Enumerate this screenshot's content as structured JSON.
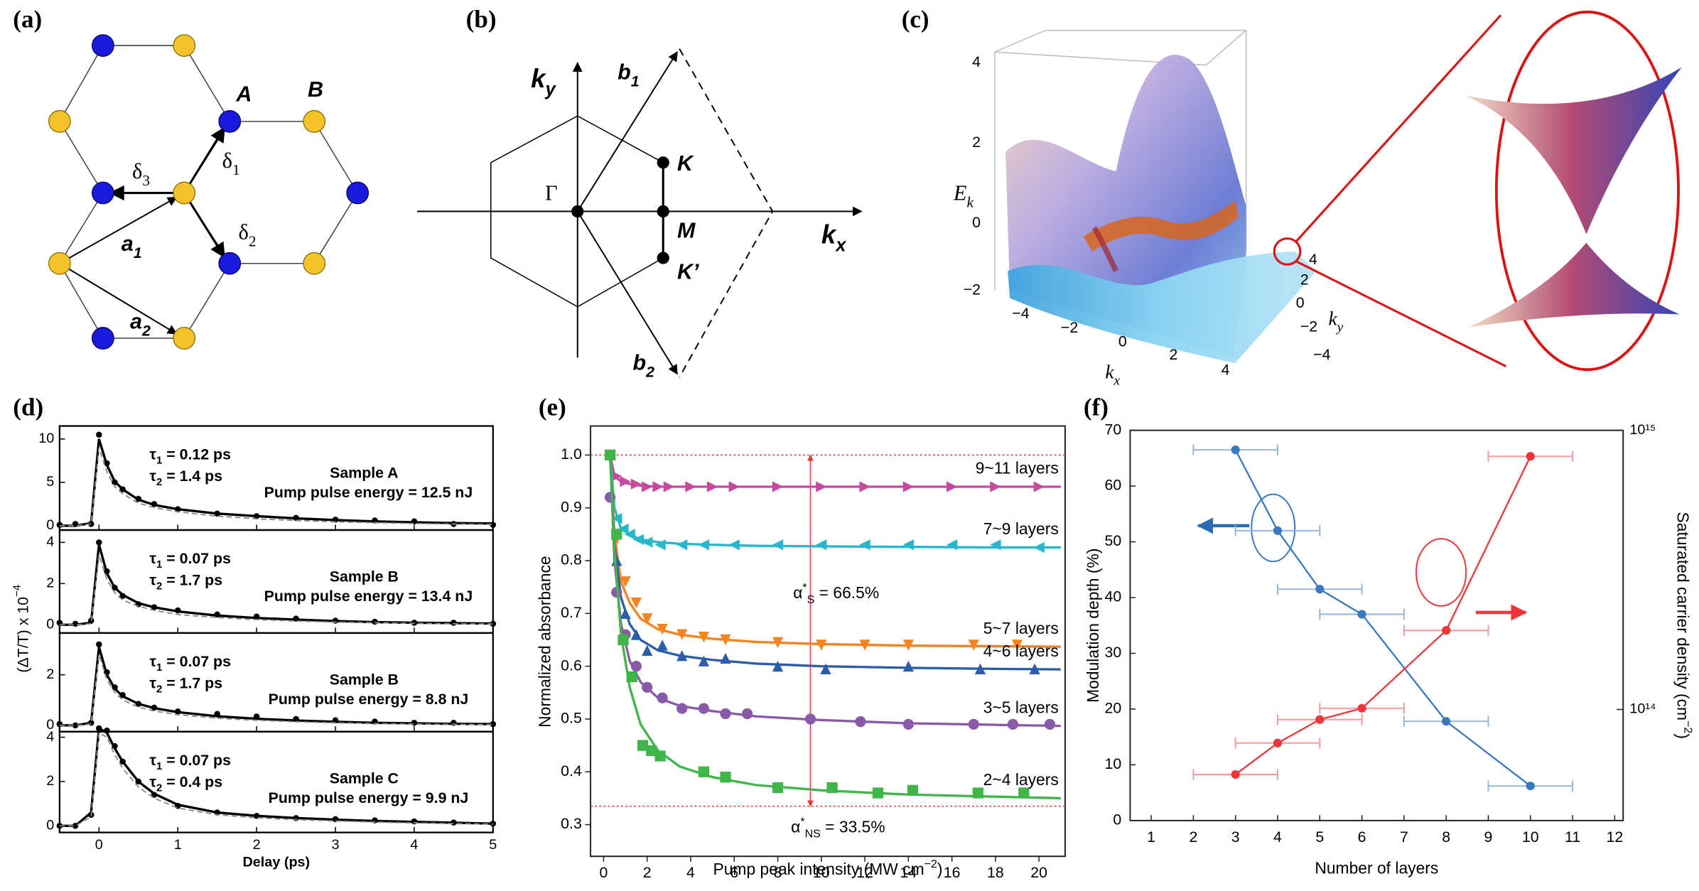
{
  "panel_labels": [
    "(a)",
    "(b)",
    "(c)",
    "(d)",
    "(e)",
    "(f)"
  ],
  "diagram_a": {
    "site_a": "A",
    "site_b": "B",
    "vectors": [
      {
        "symbol": "δ",
        "sub": "1"
      },
      {
        "symbol": "δ",
        "sub": "2"
      },
      {
        "symbol": "δ",
        "sub": "3"
      },
      {
        "symbol": "a",
        "sub": "1"
      },
      {
        "symbol": "a",
        "sub": "2"
      }
    ]
  },
  "diagram_b": {
    "axes": [
      {
        "symbol": "k",
        "sub": "x"
      },
      {
        "symbol": "k",
        "sub": "y"
      }
    ],
    "vectors": [
      {
        "symbol": "b",
        "sub": "1"
      },
      {
        "symbol": "b",
        "sub": "2"
      }
    ],
    "points": [
      "Γ",
      "K",
      "M",
      "K’"
    ]
  },
  "diagram_c": {
    "z_label": {
      "symbol": "E",
      "sub": "k"
    },
    "z_ticks": [
      "4",
      "2",
      "0",
      "−2"
    ],
    "x_label": {
      "symbol": "k",
      "sub": "x"
    },
    "x_ticks": [
      "−4",
      "−2",
      "0",
      "2",
      "4"
    ],
    "y_label": {
      "symbol": "k",
      "sub": "y"
    },
    "y_ticks": [
      "4",
      "2",
      "0",
      "−2",
      "−4"
    ]
  },
  "chart_data": [
    {
      "type": "line",
      "xlabel": "Delay (ps)",
      "ylabel": {
        "lead": "(ΔT/T) x 10",
        "sup": "−4"
      },
      "xlim": [
        -0.5,
        5
      ],
      "xticks": [
        0,
        1,
        2,
        3,
        4,
        5
      ],
      "x": [
        -0.5,
        -0.3,
        -0.1,
        0,
        0.1,
        0.2,
        0.3,
        0.5,
        0.7,
        1,
        1.5,
        2,
        2.5,
        3,
        3.5,
        4,
        4.5,
        5
      ],
      "subplots": [
        {
          "ylim": [
            -0.5,
            11.5
          ],
          "yticks": [
            0,
            5,
            10
          ],
          "tau": [
            {
              "symbol": "τ",
              "sub": "1",
              "tail": " = 0.12 ps"
            },
            {
              "symbol": "τ",
              "sub": "2",
              "tail": " = 1.4 ps"
            }
          ],
          "sample": "Sample A",
          "energy": "Pump pulse energy = 12.5 nJ",
          "series": [
            {
              "style": "markers",
              "color": "#000000",
              "values": [
                0.1,
                0.2,
                0.2,
                10.5,
                7.2,
                5.0,
                4.2,
                3.1,
                2.5,
                1.9,
                1.4,
                1.1,
                0.9,
                0.7,
                0.6,
                0.5,
                0.2,
                0.1
              ]
            },
            {
              "style": "solid",
              "color": "#000000",
              "values": [
                0,
                0,
                0.3,
                10,
                7.0,
                5.1,
                4.2,
                3.0,
                2.4,
                1.9,
                1.4,
                1.1,
                0.85,
                0.65,
                0.5,
                0.4,
                0.3,
                0.25
              ]
            },
            {
              "style": "dashed",
              "color": "#888888",
              "values": [
                0,
                0,
                0.2,
                9.0,
                6.2,
                4.5,
                3.7,
                2.6,
                2.1,
                1.6,
                1.1,
                0.8,
                0.6,
                0.45,
                0.35,
                0.25,
                0.2,
                0.15
              ]
            }
          ]
        },
        {
          "ylim": [
            -0.4,
            4.6
          ],
          "yticks": [
            0,
            2,
            4
          ],
          "tau": [
            {
              "symbol": "τ",
              "sub": "1",
              "tail": " = 0.07 ps"
            },
            {
              "symbol": "τ",
              "sub": "2",
              "tail": " = 1.7 ps"
            }
          ],
          "sample": "Sample B",
          "energy": "Pump pulse energy = 13.4 nJ",
          "series": [
            {
              "style": "markers",
              "color": "#000000",
              "values": [
                0.1,
                0.05,
                0.2,
                4.0,
                2.6,
                1.8,
                1.4,
                1.0,
                0.85,
                0.7,
                0.5,
                0.4,
                0.3,
                0.2,
                0.15,
                0.1,
                0.1,
                0.05
              ]
            },
            {
              "style": "solid",
              "color": "#000000",
              "values": [
                0,
                0,
                0.1,
                3.9,
                2.5,
                1.8,
                1.45,
                1.05,
                0.85,
                0.65,
                0.45,
                0.33,
                0.25,
                0.18,
                0.13,
                0.1,
                0.08,
                0.06
              ]
            },
            {
              "style": "dashed",
              "color": "#888888",
              "values": [
                0,
                0,
                0.05,
                3.4,
                2.2,
                1.55,
                1.2,
                0.9,
                0.7,
                0.5,
                0.35,
                0.25,
                0.18,
                0.13,
                0.1,
                0.07,
                0.05,
                0.04
              ]
            }
          ]
        },
        {
          "ylim": [
            -0.25,
            3.65
          ],
          "yticks": [
            0,
            2
          ],
          "tau": [
            {
              "symbol": "τ",
              "sub": "1",
              "tail": " = 0.07 ps"
            },
            {
              "symbol": "τ",
              "sub": "2",
              "tail": " = 1.7 ps"
            }
          ],
          "sample": "Sample B",
          "energy": "Pump pulse energy = 8.8 nJ",
          "series": [
            {
              "style": "markers",
              "color": "#000000",
              "values": [
                0.05,
                0,
                0.1,
                3.2,
                2.1,
                1.5,
                1.2,
                0.85,
                0.7,
                0.55,
                0.45,
                0.35,
                0.25,
                0.2,
                0.15,
                0.1,
                0.1,
                0.05
              ]
            },
            {
              "style": "solid",
              "color": "#000000",
              "values": [
                0,
                0,
                0.1,
                3.1,
                2.0,
                1.45,
                1.15,
                0.85,
                0.68,
                0.52,
                0.36,
                0.26,
                0.19,
                0.14,
                0.1,
                0.08,
                0.06,
                0.05
              ]
            },
            {
              "style": "dashed",
              "color": "#888888",
              "values": [
                0,
                0,
                0.05,
                2.8,
                1.8,
                1.3,
                1.0,
                0.72,
                0.57,
                0.42,
                0.28,
                0.2,
                0.14,
                0.1,
                0.07,
                0.05,
                0.04,
                0.03
              ]
            }
          ]
        },
        {
          "ylim": [
            -0.3,
            4.25
          ],
          "yticks": [
            0,
            2,
            4
          ],
          "tau": [
            {
              "symbol": "τ",
              "sub": "1",
              "tail": " = 0.07 ps"
            },
            {
              "symbol": "τ",
              "sub": "2",
              "tail": " = 0.4 ps"
            }
          ],
          "sample": "Sample C",
          "energy": "Pump pulse energy = 9.9 nJ",
          "series": [
            {
              "style": "markers",
              "color": "#000000",
              "values": [
                0,
                0,
                0.5,
                4.4,
                4.3,
                3.6,
                2.9,
                2.0,
                1.4,
                0.9,
                0.6,
                0.45,
                0.35,
                0.3,
                0.25,
                0.2,
                0.15,
                0.1
              ]
            },
            {
              "style": "solid",
              "color": "#000000",
              "values": [
                0,
                0,
                0.6,
                4.4,
                4.2,
                3.5,
                2.9,
                2.0,
                1.45,
                0.95,
                0.6,
                0.45,
                0.35,
                0.28,
                0.22,
                0.18,
                0.14,
                0.1
              ]
            },
            {
              "style": "dashed",
              "color": "#888888",
              "values": [
                0,
                0,
                0.4,
                4.2,
                4.0,
                3.2,
                2.6,
                1.75,
                1.25,
                0.8,
                0.5,
                0.36,
                0.28,
                0.22,
                0.17,
                0.13,
                0.1,
                0.08
              ]
            }
          ]
        }
      ]
    },
    {
      "type": "scatter",
      "xlabel": {
        "lead": "Pump peak intensity (MW cm",
        "sup": "−2",
        "tail": ")"
      },
      "ylabel": "Normalized absorbance",
      "xlim": [
        -0.6,
        21.2
      ],
      "xticks": [
        0,
        2,
        4,
        6,
        8,
        10,
        12,
        14,
        16,
        18,
        20
      ],
      "ylim": [
        0.24,
        1.055
      ],
      "yticks": [
        0.3,
        0.4,
        0.5,
        0.6,
        0.7,
        0.8,
        0.9,
        {
          "value": 1,
          "label": "1.0"
        }
      ],
      "reference_lines": [
        1,
        0.335
      ],
      "reference_color": "#e8393a",
      "arrow_x": 9.5,
      "annotations": [
        {
          "symbol": "α",
          "sup": "*",
          "sub": "S",
          "tail": " = 66.5%"
        },
        {
          "symbol": "α",
          "sup": "*",
          "sub": "NS",
          "tail": " = 33.5%"
        }
      ],
      "fit_x": [
        0.3,
        0.5,
        0.8,
        1.2,
        1.7,
        2.5,
        3.5,
        5,
        7,
        10,
        14,
        18,
        21
      ],
      "series": [
        {
          "name": "9~11 layers",
          "color": "#c9489f",
          "marker": "triangle-right",
          "x": [
            0.3,
            0.6,
            1,
            1.5,
            2,
            2.5,
            3,
            4,
            5,
            6,
            8,
            10,
            12,
            14,
            16,
            18,
            20
          ],
          "values": [
            1.0,
            0.96,
            0.95,
            0.945,
            0.94,
            0.94,
            0.94,
            0.94,
            0.94,
            0.94,
            0.94,
            0.94,
            0.94,
            0.94,
            0.94,
            0.94,
            0.94
          ],
          "fit": [
            1.0,
            0.96,
            0.95,
            0.945,
            0.942,
            0.94,
            0.94,
            0.94,
            0.94,
            0.94,
            0.94,
            0.94,
            0.94
          ]
        },
        {
          "name": "7~9 layers",
          "color": "#27b7cc",
          "marker": "triangle-left",
          "x": [
            0.3,
            0.6,
            0.9,
            1.2,
            1.6,
            2,
            2.6,
            3.6,
            4.6,
            6,
            8,
            10,
            12,
            14,
            16,
            18,
            20
          ],
          "values": [
            1.0,
            0.88,
            0.86,
            0.85,
            0.84,
            0.835,
            0.83,
            0.83,
            0.83,
            0.83,
            0.83,
            0.83,
            0.83,
            0.83,
            0.83,
            0.83,
            0.825
          ],
          "fit": [
            1.0,
            0.9,
            0.86,
            0.85,
            0.84,
            0.835,
            0.832,
            0.83,
            0.828,
            0.827,
            0.826,
            0.825,
            0.825
          ]
        },
        {
          "name": "5~7 layers",
          "color": "#f7831f",
          "marker": "triangle-down",
          "x": [
            0.3,
            0.6,
            1,
            1.5,
            2,
            2.7,
            3.6,
            4.6,
            5.6,
            8,
            10,
            12,
            14,
            17,
            19
          ],
          "values": [
            1.0,
            0.84,
            0.76,
            0.72,
            0.69,
            0.67,
            0.66,
            0.655,
            0.65,
            0.645,
            0.64,
            0.64,
            0.64,
            0.64,
            0.64
          ],
          "fit": [
            1.0,
            0.85,
            0.76,
            0.72,
            0.69,
            0.67,
            0.66,
            0.652,
            0.646,
            0.642,
            0.639,
            0.638,
            0.637
          ]
        },
        {
          "name": "4~6 layers",
          "color": "#2a5daa",
          "marker": "triangle-up",
          "x": [
            0.3,
            0.6,
            1,
            1.5,
            2,
            2.7,
            3.6,
            4.6,
            5.6,
            8,
            10.2,
            14,
            17.3,
            19.8
          ],
          "values": [
            1.0,
            0.8,
            0.7,
            0.66,
            0.63,
            0.64,
            0.62,
            0.61,
            0.615,
            0.6,
            0.595,
            0.6,
            0.595,
            0.595
          ],
          "fit": [
            1.0,
            0.83,
            0.73,
            0.68,
            0.65,
            0.63,
            0.62,
            0.612,
            0.605,
            0.6,
            0.597,
            0.595,
            0.594
          ]
        },
        {
          "name": "3~5 layers",
          "color": "#8a5aa8",
          "marker": "circle",
          "x": [
            0.3,
            0.6,
            1,
            1.5,
            2,
            2.7,
            3.6,
            4.6,
            5.6,
            6.6,
            9.5,
            11.8,
            14,
            17,
            18.8,
            20.5
          ],
          "values": [
            0.92,
            0.74,
            0.66,
            0.6,
            0.56,
            0.54,
            0.52,
            0.52,
            0.51,
            0.51,
            0.5,
            0.495,
            0.49,
            0.49,
            0.49,
            0.49
          ],
          "fit": [
            1.0,
            0.8,
            0.68,
            0.61,
            0.57,
            0.54,
            0.525,
            0.515,
            0.505,
            0.498,
            0.492,
            0.489,
            0.487
          ]
        },
        {
          "name": "2~4 layers",
          "color": "#3fb54a",
          "marker": "square",
          "x": [
            0.3,
            0.6,
            0.9,
            1.3,
            1.8,
            2.2,
            2.6,
            4.6,
            5.6,
            8,
            10.5,
            12.6,
            14.2,
            17.2,
            19.3
          ],
          "values": [
            1.0,
            0.85,
            0.65,
            0.58,
            0.45,
            0.44,
            0.43,
            0.4,
            0.39,
            0.37,
            0.37,
            0.36,
            0.365,
            0.36,
            0.36
          ],
          "fit": [
            1.0,
            0.82,
            0.66,
            0.56,
            0.49,
            0.44,
            0.41,
            0.39,
            0.375,
            0.365,
            0.357,
            0.353,
            0.35
          ]
        }
      ]
    },
    {
      "type": "errorbar",
      "xlabel": "Number of layers",
      "ylabel": "Modulation depth (%)",
      "y2label": {
        "lead": "Saturated carrier density (cm",
        "sup": "−2",
        "tail": ")"
      },
      "xlim": [
        0.5,
        12.2
      ],
      "xticks": [
        1,
        2,
        3,
        4,
        5,
        6,
        7,
        8,
        9,
        10,
        11,
        12
      ],
      "ylim": [
        0,
        70
      ],
      "yticks": [
        0,
        10,
        20,
        30,
        40,
        50,
        60,
        70
      ],
      "y2lim": [
        40000000000000,
        1000000000000000
      ],
      "y2scale": "log",
      "y2ticks": [
        {
          "value": 100000000000000,
          "label": "10¹⁴"
        },
        {
          "value": 1000000000000000,
          "label": "10¹⁵"
        }
      ],
      "series": [
        {
          "color": "#3a78bf",
          "bar_color": "#93b5de",
          "axis": "y",
          "x": [
            3,
            4,
            5,
            6,
            8,
            10
          ],
          "values": [
            66.5,
            52,
            41.5,
            37,
            17.8,
            6.2
          ],
          "xerr": [
            1,
            1,
            1,
            1,
            1,
            1
          ]
        },
        {
          "color": "#f0353a",
          "bar_color": "#f59a9c",
          "axis": "y2",
          "x": [
            3,
            4,
            5,
            6,
            8,
            10
          ],
          "values": [
            58500000000000,
            75800000000000,
            92000000000000,
            101000000000000,
            192000000000000,
            807000000000000
          ],
          "xerr": [
            1,
            1,
            1,
            1,
            1,
            1
          ]
        }
      ]
    }
  ]
}
